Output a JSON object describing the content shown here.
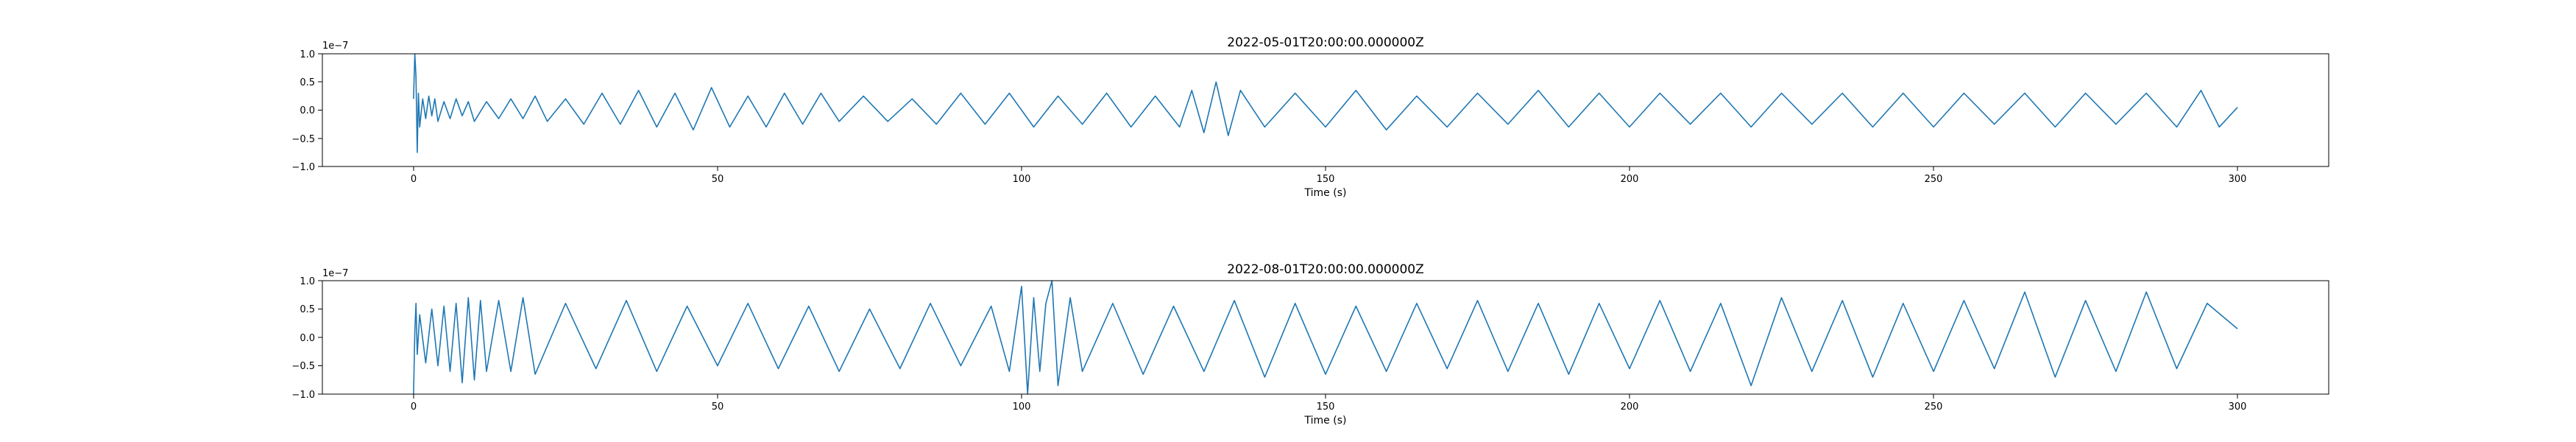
{
  "figure": {
    "background": "#ffffff",
    "line_color": "#1f77b4"
  },
  "chart_data": [
    {
      "type": "line",
      "title": "2022-05-01T20:00:00.000000Z",
      "xlabel": "Time (s)",
      "ylabel": "",
      "y_scale_label": "1e−7",
      "xlim": [
        -15,
        315
      ],
      "ylim": [
        -1.0,
        1.0
      ],
      "xticks": [
        0,
        50,
        100,
        150,
        200,
        250,
        300
      ],
      "xtick_labels": [
        "0",
        "50",
        "100",
        "150",
        "200",
        "250",
        "300"
      ],
      "yticks": [
        -1.0,
        -0.5,
        0.0,
        0.5,
        1.0
      ],
      "ytick_labels": [
        "−1.0",
        "−0.5",
        "0.0",
        "0.5",
        "1.0"
      ],
      "grid": false,
      "series": [
        {
          "x": [
            0.0,
            0.2,
            0.4,
            0.6,
            0.8,
            1.0,
            1.5,
            2.0,
            2.5,
            3.0,
            3.5,
            4.0,
            5.0,
            6.0,
            7.0,
            8.0,
            9.0,
            10.0,
            12.0,
            14.0,
            16.0,
            18.0,
            20.0,
            22.0,
            25.0,
            28.0,
            31.0,
            34.0,
            37.0,
            40.0,
            43.0,
            46.0,
            49.0,
            52.0,
            55.0,
            58.0,
            61.0,
            64.0,
            67.0,
            70.0,
            74.0,
            78.0,
            82.0,
            86.0,
            90.0,
            94.0,
            98.0,
            102.0,
            106.0,
            110.0,
            114.0,
            118.0,
            122.0,
            126.0,
            128.0,
            130.0,
            132.0,
            134.0,
            136.0,
            140.0,
            145.0,
            150.0,
            155.0,
            160.0,
            165.0,
            170.0,
            175.0,
            180.0,
            185.0,
            190.0,
            195.0,
            200.0,
            205.0,
            210.0,
            215.0,
            220.0,
            225.0,
            230.0,
            235.0,
            240.0,
            245.0,
            250.0,
            255.0,
            260.0,
            265.0,
            270.0,
            275.0,
            280.0,
            285.0,
            290.0,
            294.0,
            297.0,
            300.0
          ],
          "y": [
            0.2,
            1.0,
            0.6,
            -0.75,
            0.3,
            -0.3,
            0.2,
            -0.15,
            0.25,
            -0.1,
            0.2,
            -0.2,
            0.15,
            -0.15,
            0.2,
            -0.1,
            0.15,
            -0.2,
            0.15,
            -0.15,
            0.2,
            -0.15,
            0.25,
            -0.2,
            0.2,
            -0.25,
            0.3,
            -0.25,
            0.35,
            -0.3,
            0.3,
            -0.35,
            0.4,
            -0.3,
            0.25,
            -0.3,
            0.3,
            -0.25,
            0.3,
            -0.2,
            0.25,
            -0.2,
            0.2,
            -0.25,
            0.3,
            -0.25,
            0.3,
            -0.3,
            0.25,
            -0.25,
            0.3,
            -0.3,
            0.25,
            -0.3,
            0.35,
            -0.4,
            0.5,
            -0.45,
            0.35,
            -0.3,
            0.3,
            -0.3,
            0.35,
            -0.35,
            0.25,
            -0.3,
            0.3,
            -0.25,
            0.35,
            -0.3,
            0.3,
            -0.3,
            0.3,
            -0.25,
            0.3,
            -0.3,
            0.3,
            -0.25,
            0.3,
            -0.3,
            0.3,
            -0.3,
            0.3,
            -0.25,
            0.3,
            -0.3,
            0.3,
            -0.25,
            0.3,
            -0.3,
            0.35,
            -0.3,
            0.05
          ]
        }
      ]
    },
    {
      "type": "line",
      "title": "2022-08-01T20:00:00.000000Z",
      "xlabel": "Time (s)",
      "ylabel": "",
      "y_scale_label": "1e−7",
      "xlim": [
        -15,
        315
      ],
      "ylim": [
        -1.0,
        1.0
      ],
      "xticks": [
        0,
        50,
        100,
        150,
        200,
        250,
        300
      ],
      "xtick_labels": [
        "0",
        "50",
        "100",
        "150",
        "200",
        "250",
        "300"
      ],
      "yticks": [
        -1.0,
        -0.5,
        0.0,
        0.5,
        1.0
      ],
      "ytick_labels": [
        "−1.0",
        "−0.5",
        "0.0",
        "0.5",
        "1.0"
      ],
      "grid": false,
      "series": [
        {
          "x": [
            0.0,
            0.2,
            0.4,
            0.6,
            1.0,
            2.0,
            3.0,
            4.0,
            5.0,
            6.0,
            7.0,
            8.0,
            9.0,
            10.0,
            11.0,
            12.0,
            14.0,
            16.0,
            18.0,
            20.0,
            25.0,
            30.0,
            35.0,
            40.0,
            45.0,
            50.0,
            55.0,
            60.0,
            65.0,
            70.0,
            75.0,
            80.0,
            85.0,
            90.0,
            95.0,
            98.0,
            100.0,
            101.0,
            102.0,
            103.0,
            104.0,
            105.0,
            106.0,
            108.0,
            110.0,
            115.0,
            120.0,
            125.0,
            130.0,
            135.0,
            140.0,
            145.0,
            150.0,
            155.0,
            160.0,
            165.0,
            170.0,
            175.0,
            180.0,
            185.0,
            190.0,
            195.0,
            200.0,
            205.0,
            210.0,
            215.0,
            220.0,
            225.0,
            230.0,
            235.0,
            240.0,
            245.0,
            250.0,
            255.0,
            260.0,
            265.0,
            270.0,
            275.0,
            280.0,
            285.0,
            290.0,
            295.0,
            300.0
          ],
          "y": [
            -1.0,
            0.1,
            0.6,
            -0.3,
            0.4,
            -0.45,
            0.5,
            -0.5,
            0.55,
            -0.6,
            0.6,
            -0.8,
            0.7,
            -0.75,
            0.65,
            -0.6,
            0.65,
            -0.6,
            0.7,
            -0.65,
            0.6,
            -0.55,
            0.65,
            -0.6,
            0.55,
            -0.5,
            0.6,
            -0.55,
            0.55,
            -0.6,
            0.5,
            -0.55,
            0.6,
            -0.5,
            0.55,
            -0.6,
            0.9,
            -1.0,
            0.7,
            -0.6,
            0.6,
            1.0,
            -0.85,
            0.7,
            -0.6,
            0.6,
            -0.65,
            0.55,
            -0.6,
            0.65,
            -0.7,
            0.6,
            -0.65,
            0.55,
            -0.6,
            0.6,
            -0.55,
            0.65,
            -0.6,
            0.6,
            -0.65,
            0.6,
            -0.55,
            0.65,
            -0.6,
            0.6,
            -0.85,
            0.7,
            -0.6,
            0.65,
            -0.7,
            0.6,
            -0.6,
            0.65,
            -0.55,
            0.8,
            -0.7,
            0.65,
            -0.6,
            0.8,
            -0.55,
            0.6,
            0.15
          ]
        }
      ]
    }
  ]
}
